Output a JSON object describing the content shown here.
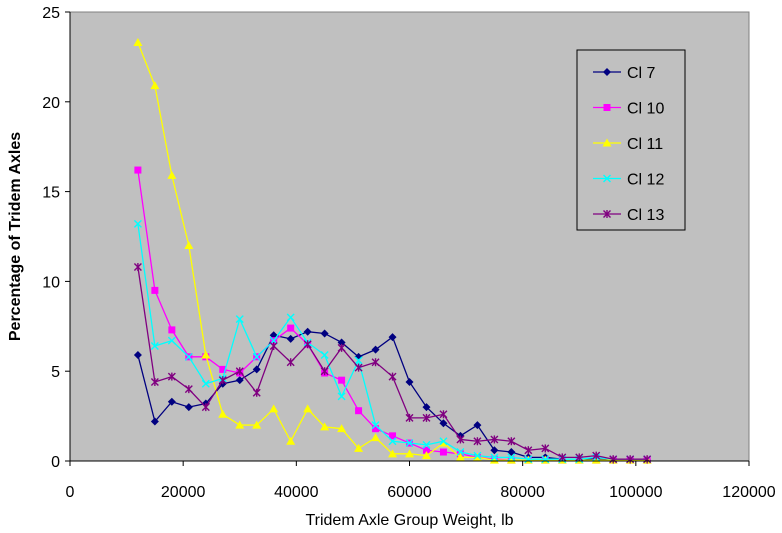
{
  "chart_data": {
    "type": "line",
    "title": "",
    "xlabel": "Tridem Axle Group Weight, lb",
    "ylabel": "Percentage of Tridem Axles",
    "xlim": [
      0,
      120000
    ],
    "ylim": [
      0,
      25
    ],
    "xticks": [
      0,
      20000,
      40000,
      60000,
      80000,
      100000,
      120000
    ],
    "yticks": [
      0,
      5,
      10,
      15,
      20,
      25
    ],
    "grid": false,
    "legend_position": "top-right",
    "background_color": "#c0c0c0",
    "x": [
      12000,
      15000,
      18000,
      21000,
      24000,
      27000,
      30000,
      33000,
      36000,
      39000,
      42000,
      45000,
      48000,
      51000,
      54000,
      57000,
      60000,
      63000,
      66000,
      69000,
      72000,
      75000,
      78000,
      81000,
      84000,
      87000,
      90000,
      93000,
      96000,
      99000,
      102000
    ],
    "series": [
      {
        "name": "Cl 7",
        "color": "#000080",
        "marker": "diamond",
        "values": [
          5.9,
          2.2,
          3.3,
          3.0,
          3.2,
          4.3,
          4.5,
          5.1,
          7.0,
          6.8,
          7.2,
          7.1,
          6.6,
          5.8,
          6.2,
          6.9,
          4.4,
          3.0,
          2.1,
          1.4,
          2.0,
          0.6,
          0.5,
          0.2,
          0.2,
          0.1,
          0.1,
          0.1,
          0.05,
          0.05,
          0.05
        ]
      },
      {
        "name": "Cl 10",
        "color": "#ff00ff",
        "marker": "square",
        "values": [
          16.2,
          9.5,
          7.3,
          5.8,
          5.8,
          5.1,
          4.9,
          5.8,
          6.7,
          7.4,
          6.5,
          4.9,
          4.5,
          2.8,
          1.8,
          1.4,
          1.0,
          0.6,
          0.5,
          0.4,
          0.2,
          0.1,
          0.05,
          0.05,
          0.05,
          0.05,
          0.05,
          0.05,
          0.05,
          0.05,
          0.05
        ]
      },
      {
        "name": "Cl 11",
        "color": "#ffff00",
        "marker": "triangle",
        "values": [
          23.3,
          20.9,
          15.9,
          12.0,
          5.9,
          2.6,
          2.0,
          2.0,
          2.9,
          1.1,
          2.9,
          1.9,
          1.8,
          0.7,
          1.3,
          0.4,
          0.4,
          0.3,
          1.0,
          0.2,
          0.2,
          0.05,
          0.05,
          0.05,
          0.05,
          0.05,
          0.05,
          0.05,
          0.05,
          0.05,
          0.05
        ]
      },
      {
        "name": "Cl 12",
        "color": "#00ffff",
        "marker": "x",
        "values": [
          13.2,
          6.4,
          6.7,
          5.8,
          4.3,
          4.6,
          7.9,
          5.8,
          6.7,
          8.0,
          6.6,
          5.9,
          3.6,
          5.6,
          2.0,
          1.1,
          1.0,
          0.9,
          1.1,
          0.5,
          0.3,
          0.2,
          0.2,
          0.1,
          0.1,
          0.1,
          0.1,
          0.2,
          0.1,
          0.1,
          0.1
        ]
      },
      {
        "name": "Cl 13",
        "color": "#800080",
        "marker": "star",
        "values": [
          10.8,
          4.4,
          4.7,
          4.0,
          3.0,
          4.5,
          5.0,
          3.8,
          6.4,
          5.5,
          6.5,
          5.0,
          6.3,
          5.2,
          5.5,
          4.7,
          2.4,
          2.4,
          2.6,
          1.2,
          1.1,
          1.2,
          1.1,
          0.6,
          0.7,
          0.2,
          0.2,
          0.3,
          0.1,
          0.1,
          0.1
        ]
      }
    ]
  }
}
